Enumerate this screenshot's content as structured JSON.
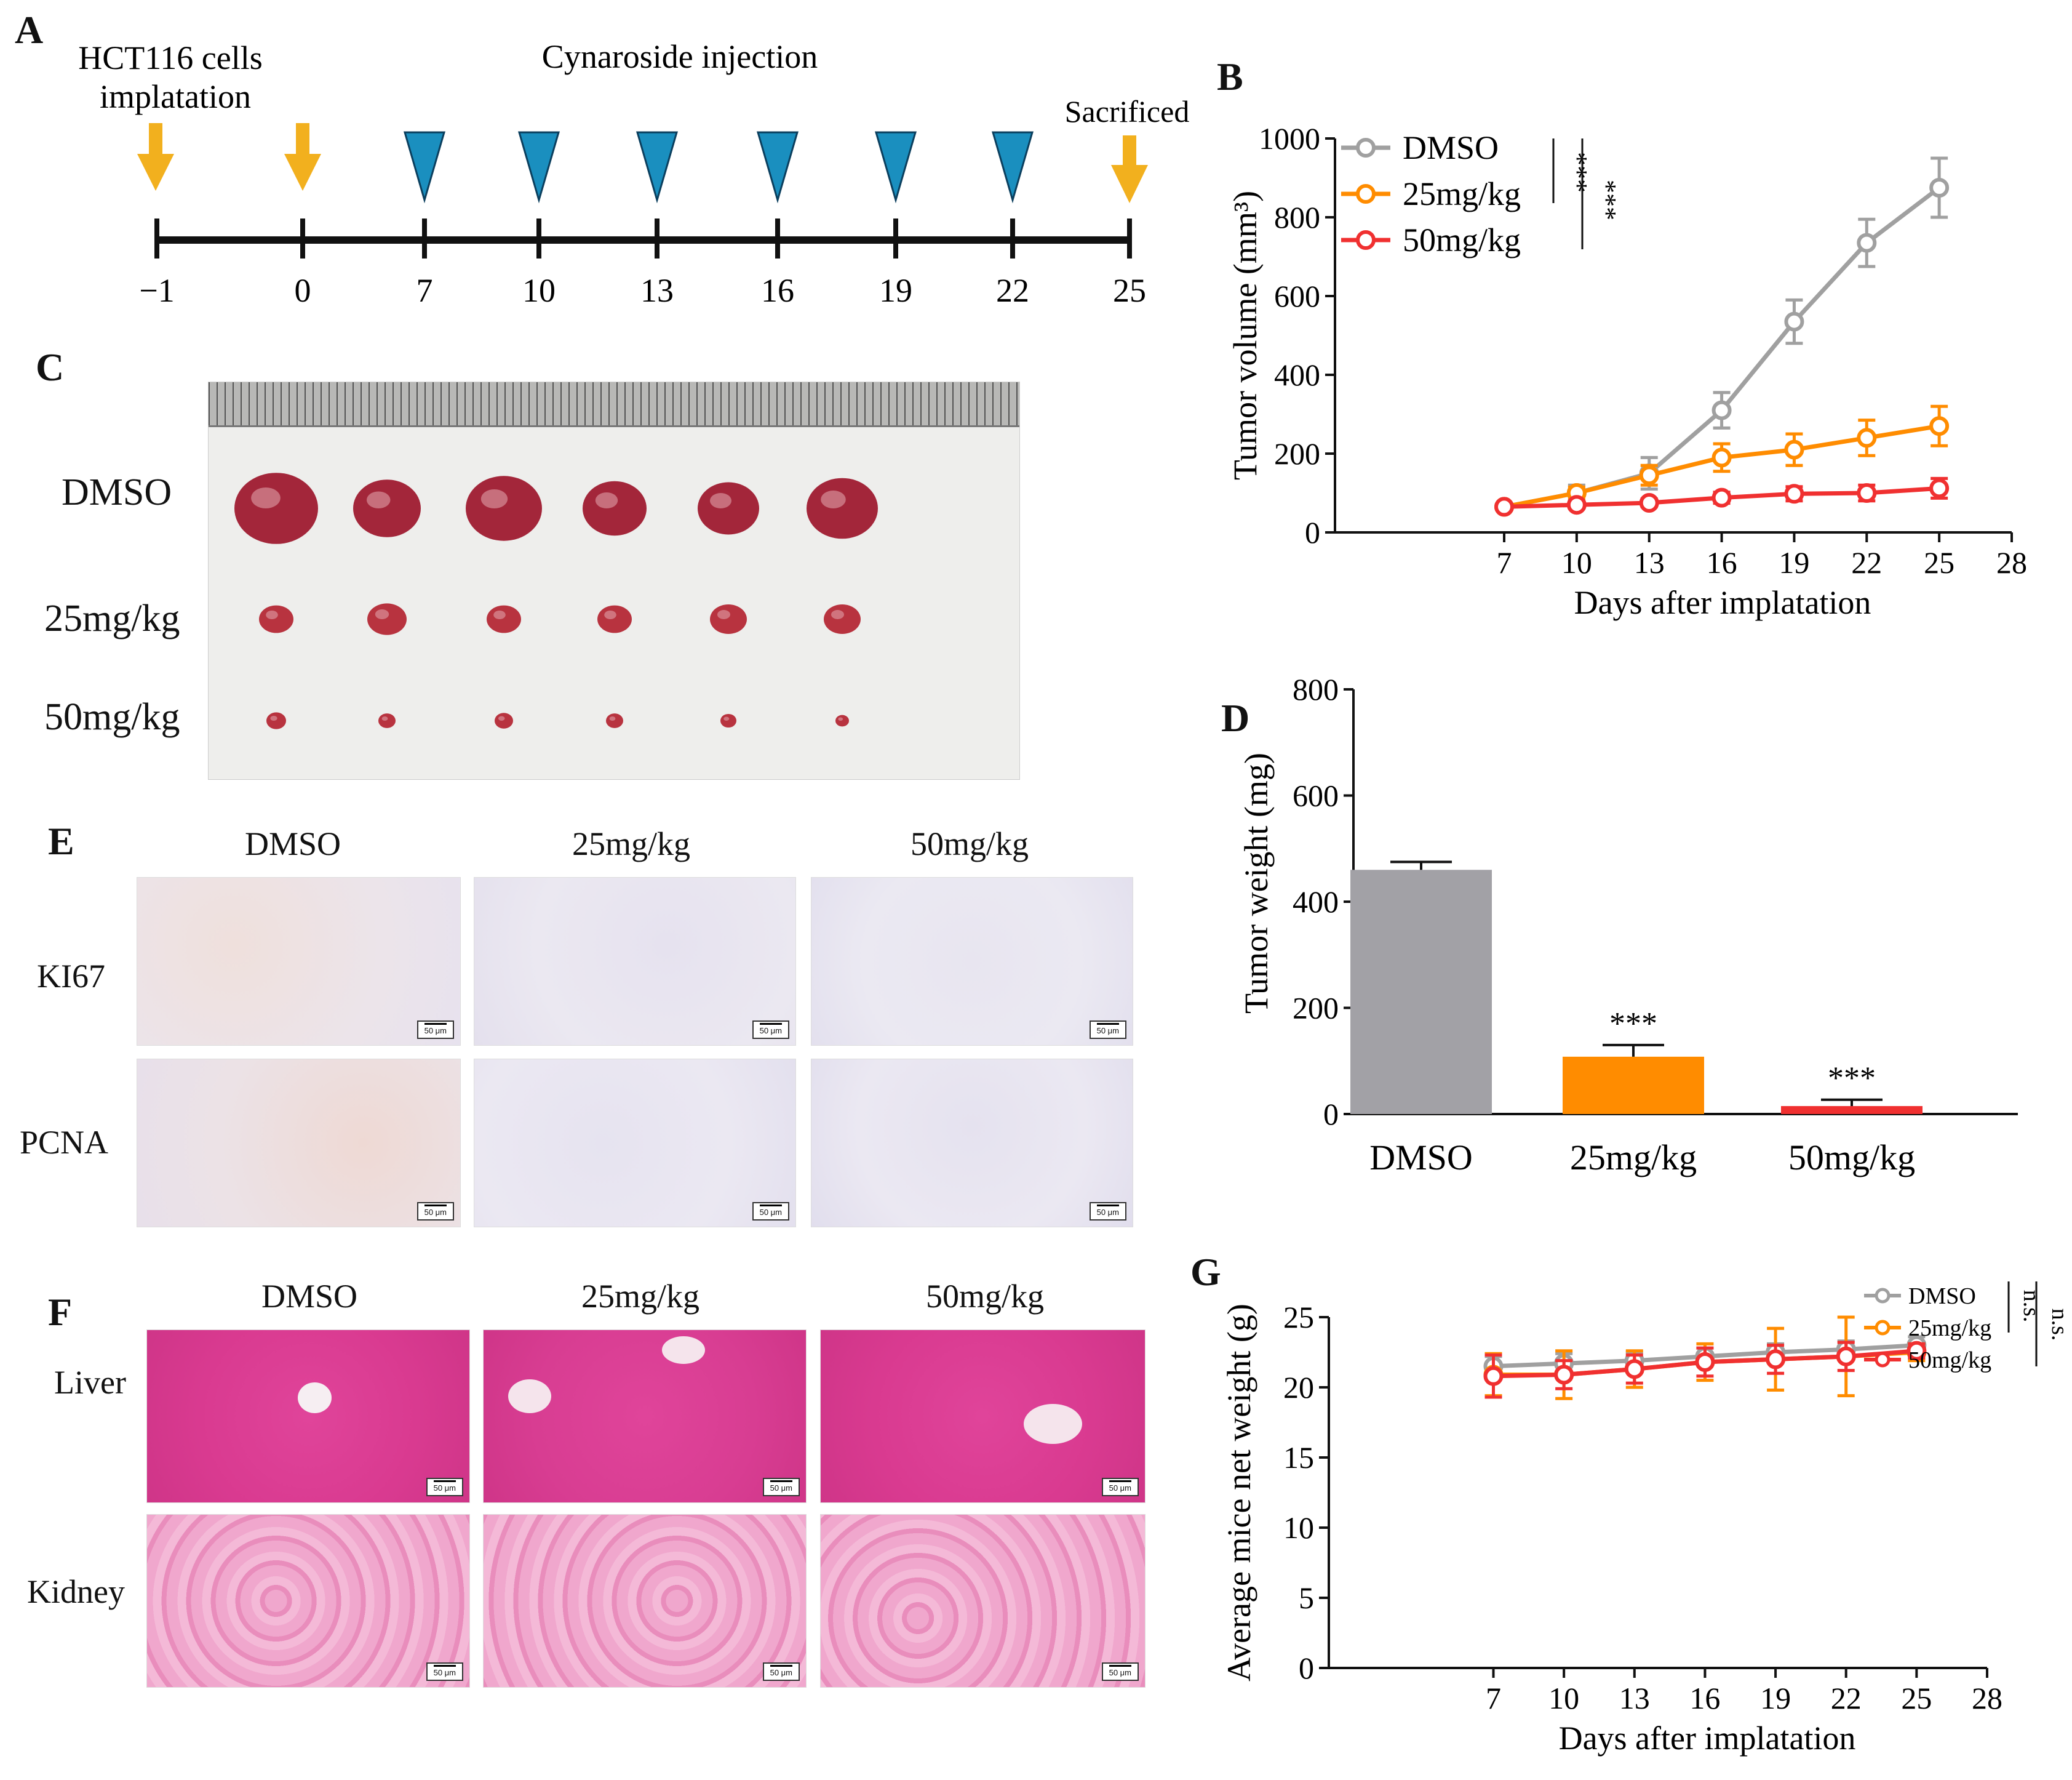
{
  "panels": {
    "A": "A",
    "B": "B",
    "C": "C",
    "D": "D",
    "E": "E",
    "F": "F",
    "G": "G"
  },
  "timeline": {
    "label_implant": "HCT116  cells",
    "label_implant2": "implatation",
    "label_injection": "Cynaroside  injection",
    "label_sacrificed": "Sacrificed",
    "ticks": [
      "−1",
      "0",
      "7",
      "10",
      "13",
      "16",
      "19",
      "22",
      "25"
    ],
    "arrow_color": "#f2b01e",
    "triangle_color": "#1a8fbf"
  },
  "photo": {
    "rows": [
      "DMSO",
      "25mg/kg",
      "50mg/kg"
    ]
  },
  "ihc": {
    "columns": [
      "DMSO",
      "25mg/kg",
      "50mg/kg"
    ],
    "rows": [
      "KI67",
      "PCNA"
    ],
    "scale": "50 μm"
  },
  "he": {
    "columns": [
      "DMSO",
      "25mg/kg",
      "50mg/kg"
    ],
    "rows": [
      "Liver",
      "Kidney"
    ],
    "scale": "50 μm"
  },
  "chart_data": [
    {
      "id": "B",
      "type": "line",
      "xlabel": "Days after implatation",
      "ylabel": "Tumor volume (mm³)",
      "x": [
        7,
        10,
        13,
        16,
        19,
        22,
        25
      ],
      "xticks": [
        7,
        10,
        13,
        16,
        19,
        22,
        25,
        28
      ],
      "xlim": [
        0,
        28
      ],
      "ylim": [
        0,
        1000
      ],
      "yticks": [
        0,
        200,
        400,
        600,
        800,
        1000
      ],
      "legend_position": "top-left",
      "significance": [
        "***",
        "***"
      ],
      "series": [
        {
          "name": "DMSO",
          "color": "#a0a0a0",
          "values": [
            65,
            100,
            150,
            310,
            535,
            735,
            875
          ],
          "errors": [
            8,
            20,
            40,
            45,
            55,
            60,
            75
          ]
        },
        {
          "name": "25mg/kg",
          "color": "#ff8c00",
          "values": [
            65,
            100,
            145,
            190,
            210,
            240,
            270
          ],
          "errors": [
            8,
            15,
            25,
            35,
            40,
            45,
            50
          ]
        },
        {
          "name": "50mg/kg",
          "color": "#f03030",
          "values": [
            65,
            70,
            75,
            88,
            98,
            100,
            112
          ],
          "errors": [
            6,
            8,
            10,
            14,
            18,
            20,
            25
          ]
        }
      ]
    },
    {
      "id": "D",
      "type": "bar",
      "ylabel": "Tumor weight (mg)",
      "categories": [
        "DMSO",
        "25mg/kg",
        "50mg/kg"
      ],
      "values": [
        460,
        108,
        15
      ],
      "errors": [
        15,
        22,
        12
      ],
      "colors": [
        "#a2a1a6",
        "#ff8c00",
        "#f03030"
      ],
      "ylim": [
        0,
        800
      ],
      "yticks": [
        0,
        200,
        400,
        600,
        800
      ],
      "annotations": [
        "",
        "***",
        "***"
      ]
    },
    {
      "id": "G",
      "type": "line",
      "xlabel": "Days after implatation",
      "ylabel": "Average mice net weight (g)",
      "x": [
        7,
        10,
        13,
        16,
        19,
        22,
        25
      ],
      "xticks": [
        7,
        10,
        13,
        16,
        19,
        22,
        25,
        28
      ],
      "xlim": [
        0,
        28
      ],
      "ylim": [
        0,
        25
      ],
      "yticks": [
        0,
        5,
        10,
        15,
        20,
        25
      ],
      "legend_position": "top-right",
      "significance": [
        "n.s.",
        "n.s."
      ],
      "series": [
        {
          "name": "DMSO",
          "color": "#a0a0a0",
          "values": [
            21.5,
            21.7,
            21.9,
            22.2,
            22.5,
            22.7,
            23.0
          ],
          "errors": [
            0.7,
            0.7,
            0.6,
            0.6,
            0.6,
            0.6,
            0.6
          ]
        },
        {
          "name": "25mg/kg",
          "color": "#ff8c00",
          "values": [
            20.9,
            20.9,
            21.3,
            21.8,
            22.0,
            22.2,
            22.5
          ],
          "errors": [
            1.5,
            1.7,
            1.3,
            1.3,
            2.2,
            2.8,
            0.6
          ]
        },
        {
          "name": "50mg/kg",
          "color": "#f03030",
          "values": [
            20.8,
            20.9,
            21.3,
            21.8,
            22.0,
            22.2,
            22.6
          ],
          "errors": [
            1.5,
            1.0,
            1.0,
            1.0,
            1.0,
            1.0,
            0.5
          ]
        }
      ]
    }
  ]
}
